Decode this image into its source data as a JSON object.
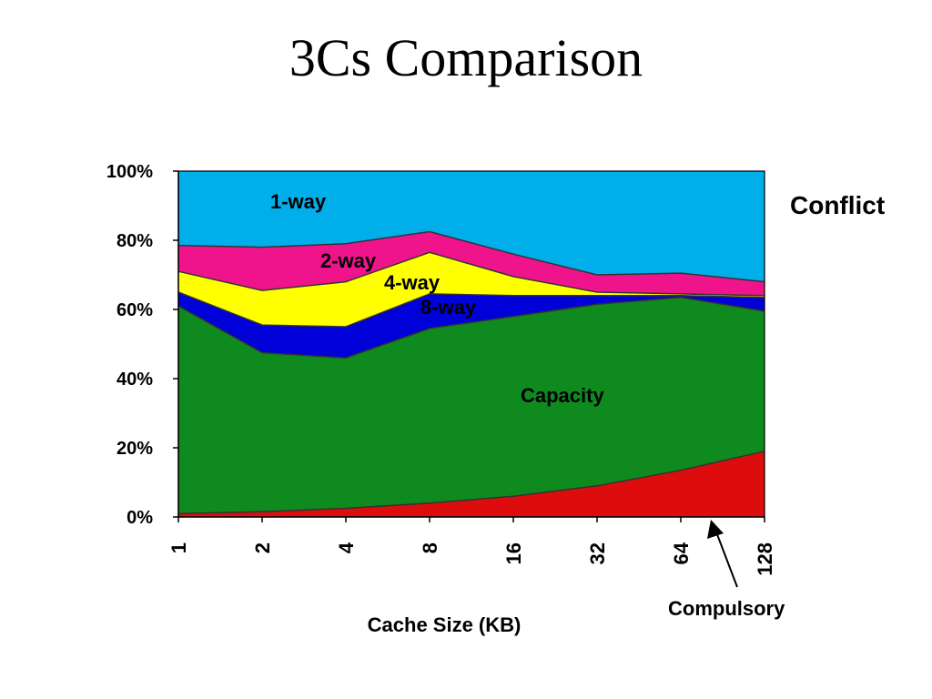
{
  "slide": {
    "title": "3Cs Comparison"
  },
  "chart_data": {
    "type": "area",
    "stacked": true,
    "xlabel": "Cache Size (KB)",
    "ylabel": "",
    "categories": [
      "1",
      "2",
      "4",
      "8",
      "16",
      "32",
      "64",
      "128"
    ],
    "ylim": [
      0,
      100
    ],
    "yticks": [
      "0%",
      "20%",
      "40%",
      "60%",
      "80%",
      "100%"
    ],
    "grid": false,
    "series": [
      {
        "name": "Compulsory",
        "color": "#dd0d0d",
        "values": [
          1,
          1.5,
          2.5,
          4,
          6,
          9,
          13.5,
          19
        ]
      },
      {
        "name": "Capacity",
        "color": "#0e8a1e",
        "values": [
          60,
          46,
          43.5,
          50.5,
          52,
          52.5,
          50,
          40.5
        ]
      },
      {
        "name": "8-way",
        "color": "#0000d8",
        "values": [
          4,
          8,
          9,
          10,
          6,
          2.5,
          0.5,
          4
        ]
      },
      {
        "name": "4-way",
        "color": "#ffff00",
        "values": [
          6,
          10,
          13,
          12,
          5.5,
          1,
          0.5,
          0.5
        ]
      },
      {
        "name": "2-way",
        "color": "#f0148c",
        "values": [
          7.5,
          12.5,
          11,
          6,
          6.5,
          5,
          6,
          4
        ]
      },
      {
        "name": "1-way",
        "color": "#00aeea",
        "values": [
          21.5,
          22,
          21,
          17.5,
          24,
          30,
          29.5,
          32
        ]
      }
    ],
    "annotations": {
      "conflict": "Conflict",
      "compulsory": "Compulsory"
    }
  }
}
